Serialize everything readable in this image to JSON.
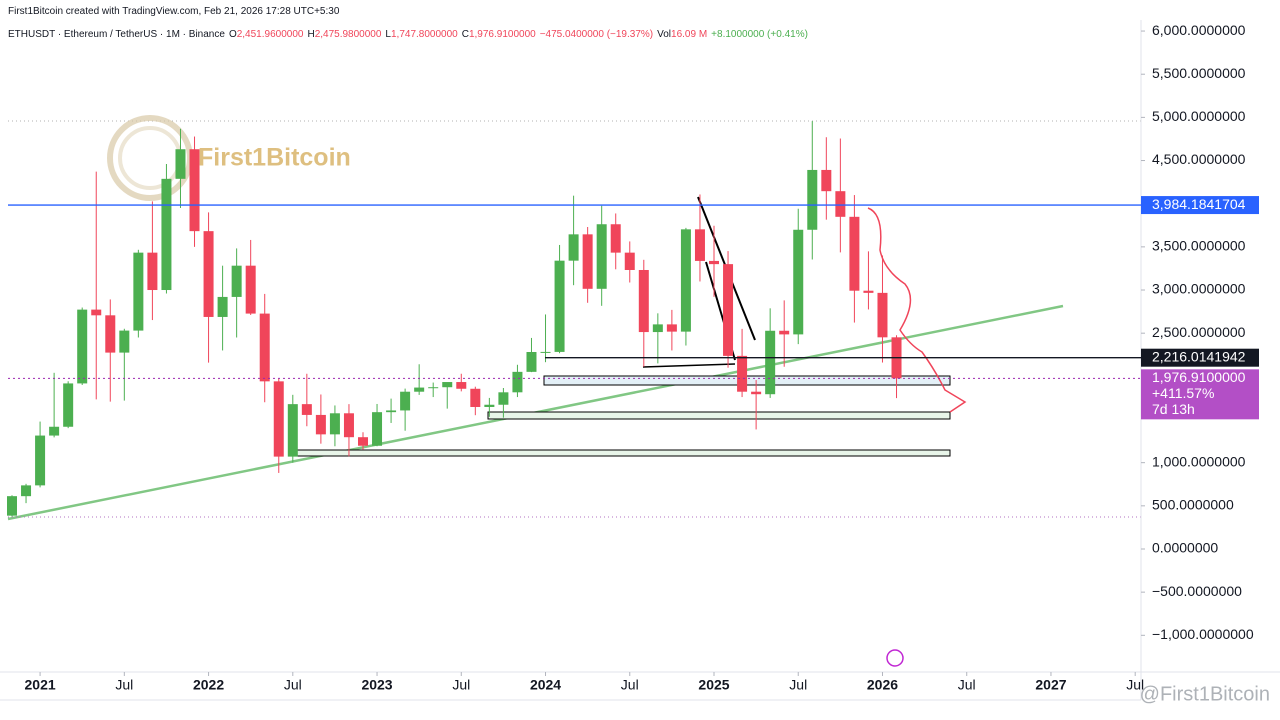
{
  "chart_data": {
    "type": "candlestick",
    "credit": "First1Bitcoin created with TradingView.com, Feb 21, 2026 17:28 UTC+5:30",
    "symbol": "ETHUSDT · Ethereum / TetherUS · 1M · Binance",
    "legend": [
      {
        "key": "O",
        "value": "2,451.9600000"
      },
      {
        "key": "H",
        "value": "2,475.9800000"
      },
      {
        "key": "L",
        "value": "1,747.8000000"
      },
      {
        "key": "C",
        "value": "1,976.9100000"
      }
    ],
    "change": "−475.0400000 (−19.37%)",
    "volume_key": "Vol",
    "volume": "16.09 M",
    "volume_change": "+8.1000000 (+0.41%)",
    "watermark": "First1Bitcoin",
    "handle": "@First1Bitcoin",
    "up_color": "#4caf50",
    "down_color": "#f0455a",
    "x": [
      "2020-11",
      "2020-12",
      "2021-01",
      "2021-02",
      "2021-03",
      "2021-04",
      "2021-05",
      "2021-06",
      "2021-07",
      "2021-08",
      "2021-09",
      "2021-10",
      "2021-11",
      "2021-12",
      "2022-01",
      "2022-02",
      "2022-03",
      "2022-04",
      "2022-05",
      "2022-06",
      "2022-07",
      "2022-08",
      "2022-09",
      "2022-10",
      "2022-11",
      "2022-12",
      "2023-01",
      "2023-02",
      "2023-03",
      "2023-04",
      "2023-05",
      "2023-06",
      "2023-07",
      "2023-08",
      "2023-09",
      "2023-10",
      "2023-11",
      "2023-12",
      "2024-01",
      "2024-02",
      "2024-03",
      "2024-04",
      "2024-05",
      "2024-06",
      "2024-07",
      "2024-08",
      "2024-09",
      "2024-10",
      "2024-11",
      "2024-12",
      "2025-01",
      "2025-02",
      "2025-03",
      "2025-04",
      "2025-05",
      "2025-06",
      "2025-07",
      "2025-08",
      "2025-09",
      "2025-10",
      "2025-11",
      "2025-12",
      "2026-01",
      "2026-02"
    ],
    "open": [
      386,
      612,
      737,
      1314,
      1416,
      1918,
      2773,
      2707,
      2275,
      2530,
      3433,
      3000,
      4288,
      4631,
      3682,
      2688,
      2920,
      3282,
      2727,
      1942,
      1070,
      1678,
      1553,
      1328,
      1572,
      1295,
      1196,
      1585,
      1605,
      1822,
      1870,
      1874,
      1934,
      1856,
      1645,
      1671,
      1815,
      2052,
      2282,
      2283,
      3340,
      3645,
      3014,
      3762,
      3433,
      3232,
      2513,
      2602,
      2518,
      3703,
      3337,
      3300,
      2237,
      1822,
      1793,
      2528,
      2486,
      3698,
      4391,
      4145,
      3848,
      2992,
      2967,
      2451.96
    ],
    "high": [
      622,
      755,
      1476,
      2041,
      1943,
      2797,
      4372,
      2891,
      2551,
      3466,
      4027,
      4460,
      4868,
      4778,
      3900,
      3282,
      3482,
      3580,
      2955,
      1972,
      1786,
      2030,
      1790,
      1663,
      1678,
      1352,
      1680,
      1742,
      1858,
      2140,
      1928,
      1930,
      2030,
      1880,
      1750,
      1865,
      2134,
      2445,
      2717,
      3522,
      4093,
      3730,
      3977,
      3887,
      3563,
      3350,
      2730,
      2770,
      3720,
      4107,
      3744,
      3451,
      2550,
      1957,
      2788,
      2880,
      3941,
      4957,
      4770,
      4755,
      4100,
      3448,
      3400,
      2475.98
    ],
    "low": [
      373,
      531,
      714,
      1293,
      1400,
      1900,
      1733,
      1707,
      1719,
      2450,
      2652,
      2960,
      3950,
      3500,
      2159,
      2300,
      2450,
      2711,
      1700,
      881,
      1000,
      1422,
      1220,
      1190,
      1074,
      1150,
      1190,
      1460,
      1370,
      1785,
      1760,
      1626,
      1826,
      1550,
      1531,
      1521,
      1760,
      2049,
      2164,
      2268,
      3056,
      2852,
      2817,
      3240,
      3087,
      2111,
      2150,
      2300,
      2357,
      3099,
      2920,
      2100,
      1760,
      1385,
      1750,
      2111,
      2373,
      3354,
      3815,
      3436,
      2623,
      2775,
      2160,
      1747.8
    ],
    "close": [
      612,
      737,
      1314,
      1416,
      1918,
      2773,
      2707,
      2275,
      2530,
      3433,
      3000,
      4288,
      4631,
      3682,
      2688,
      2920,
      3282,
      2727,
      1942,
      1070,
      1678,
      1553,
      1328,
      1572,
      1295,
      1196,
      1585,
      1605,
      1822,
      1870,
      1874,
      1934,
      1856,
      1645,
      1671,
      1815,
      2052,
      2282,
      2283,
      3340,
      3645,
      3014,
      3762,
      3433,
      3232,
      2513,
      2602,
      2518,
      3703,
      3337,
      3300,
      2237,
      1822,
      1793,
      2528,
      2486,
      3698,
      4391,
      4145,
      3848,
      2992,
      2967,
      2452,
      1976.91
    ],
    "xticks": [
      {
        "value": "2021-01",
        "label": "2021"
      },
      {
        "value": "2021-07",
        "label": "Jul"
      },
      {
        "value": "2022-01",
        "label": "2022"
      },
      {
        "value": "2022-07",
        "label": "Jul"
      },
      {
        "value": "2023-01",
        "label": "2023"
      },
      {
        "value": "2023-07",
        "label": "Jul"
      },
      {
        "value": "2024-01",
        "label": "2024"
      },
      {
        "value": "2024-07",
        "label": "Jul"
      },
      {
        "value": "2025-01",
        "label": "2025"
      },
      {
        "value": "2025-07",
        "label": "Jul"
      },
      {
        "value": "2026-01",
        "label": "2026"
      },
      {
        "value": "2026-07",
        "label": "Jul"
      },
      {
        "value": "2027-01",
        "label": "2027"
      },
      {
        "value": "2027-07",
        "label": "Jul"
      }
    ],
    "ylim": [
      -1425,
      6128
    ],
    "yticks": [
      {
        "value": 6000,
        "label": "6,000.0000000"
      },
      {
        "value": 5500,
        "label": "5,500.0000000"
      },
      {
        "value": 5000,
        "label": "5,000.0000000"
      },
      {
        "value": 4500,
        "label": "4,500.0000000"
      },
      {
        "value": 3500,
        "label": "3,500.0000000"
      },
      {
        "value": 3000,
        "label": "3,000.0000000"
      },
      {
        "value": 2500,
        "label": "2,500.0000000"
      },
      {
        "value": 1000,
        "label": "1,000.0000000"
      },
      {
        "value": 500,
        "label": "500.0000000"
      },
      {
        "value": 0,
        "label": "0.0000000"
      },
      {
        "value": -500,
        "label": "−500.0000000"
      },
      {
        "value": -1000,
        "label": "−1,000.0000000"
      }
    ],
    "price_lines": [
      {
        "value": 3984.1841704,
        "label": "3,984.1841704",
        "color": "#2962ff"
      },
      {
        "value": 2216.0141942,
        "label": "2,216.0141942",
        "color": "#131722"
      },
      {
        "value": 1976.91,
        "label": "1,976.9100000",
        "color": "#9c27b0",
        "extra": [
          "+411.57%",
          "7d 13h"
        ]
      }
    ]
  }
}
